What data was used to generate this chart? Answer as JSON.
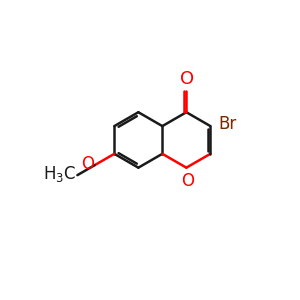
{
  "bond_color": "#1a1a1a",
  "oxygen_color": "#ff0000",
  "bromine_color": "#7b2800",
  "background": "#ffffff",
  "line_width": 1.8,
  "font_size": 12,
  "bl": 36
}
